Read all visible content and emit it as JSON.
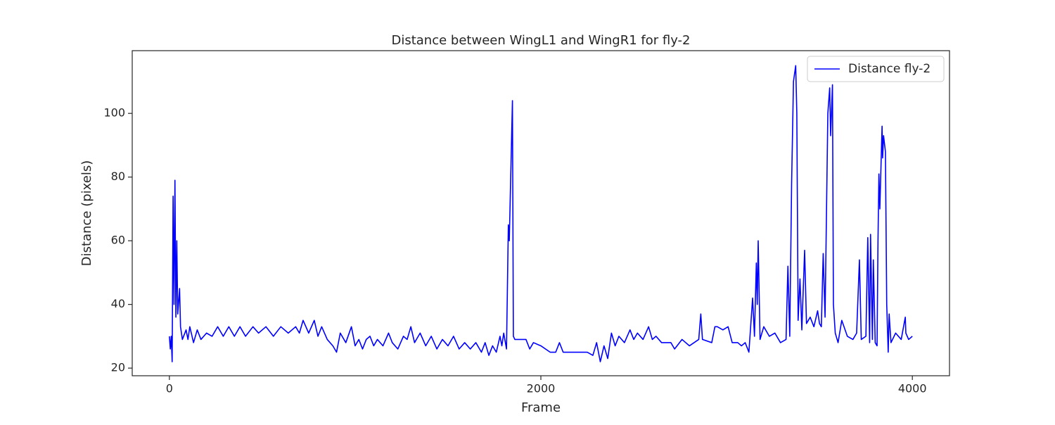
{
  "chart_data": {
    "type": "line",
    "title": "Distance between WingL1 and WingR1 for fly-2",
    "xlabel": "Frame",
    "ylabel": "Distance (pixels)",
    "xlim": [
      -200,
      4200
    ],
    "ylim": [
      17.6,
      119.7
    ],
    "xticks": [
      0,
      2000,
      4000
    ],
    "yticks": [
      20,
      40,
      60,
      80,
      100
    ],
    "legend": "upper right",
    "series": [
      {
        "name": "Distance fly-2",
        "color": "#0000ff",
        "x": [
          0,
          5,
          10,
          15,
          20,
          25,
          30,
          35,
          40,
          45,
          55,
          60,
          70,
          90,
          100,
          110,
          130,
          150,
          170,
          200,
          230,
          260,
          290,
          320,
          350,
          380,
          410,
          450,
          480,
          520,
          560,
          600,
          640,
          680,
          700,
          720,
          750,
          780,
          800,
          820,
          850,
          880,
          900,
          920,
          950,
          980,
          1000,
          1020,
          1040,
          1060,
          1080,
          1100,
          1120,
          1150,
          1180,
          1200,
          1230,
          1260,
          1280,
          1300,
          1320,
          1350,
          1380,
          1410,
          1440,
          1470,
          1500,
          1530,
          1560,
          1590,
          1620,
          1650,
          1680,
          1700,
          1720,
          1740,
          1760,
          1780,
          1790,
          1800,
          1815,
          1825,
          1830,
          1847,
          1852,
          1860,
          1900,
          1920,
          1940,
          1960,
          2000,
          2050,
          2080,
          2100,
          2120,
          2200,
          2250,
          2280,
          2300,
          2320,
          2340,
          2360,
          2380,
          2400,
          2420,
          2450,
          2480,
          2500,
          2520,
          2550,
          2580,
          2600,
          2620,
          2650,
          2700,
          2720,
          2760,
          2800,
          2850,
          2861,
          2870,
          2920,
          2937,
          2950,
          2980,
          3008,
          3030,
          3060,
          3080,
          3100,
          3120,
          3140,
          3150,
          3160,
          3165,
          3170,
          3180,
          3200,
          3230,
          3260,
          3290,
          3320,
          3330,
          3340,
          3350,
          3360,
          3372,
          3378,
          3385,
          3395,
          3405,
          3420,
          3430,
          3450,
          3470,
          3490,
          3500,
          3510,
          3520,
          3530,
          3545,
          3555,
          3560,
          3570,
          3575,
          3585,
          3600,
          3620,
          3650,
          3680,
          3700,
          3715,
          3725,
          3750,
          3760,
          3770,
          3775,
          3785,
          3790,
          3800,
          3810,
          3815,
          3820,
          3825,
          3837,
          3840,
          3845,
          3855,
          3862,
          3870,
          3875,
          3885,
          3910,
          3940,
          3962,
          3965,
          3980,
          4000
        ],
        "values": [
          30,
          26,
          30,
          22,
          74,
          40,
          79,
          36,
          60,
          37,
          45,
          33,
          29,
          32,
          29,
          33,
          28,
          32,
          29,
          31,
          30,
          33,
          30,
          33,
          30,
          33,
          30,
          33,
          31,
          33,
          30,
          33,
          31,
          33,
          31,
          35,
          31,
          35,
          30,
          33,
          29,
          27,
          25,
          31,
          28,
          33,
          27,
          29,
          26,
          29,
          30,
          27,
          29,
          27,
          31,
          28,
          26,
          30,
          29,
          33,
          28,
          31,
          27,
          30,
          26,
          29,
          27,
          30,
          26,
          28,
          26,
          28,
          25,
          28,
          24,
          27,
          25,
          30,
          27,
          31,
          26,
          65,
          60,
          104,
          30,
          29,
          29,
          29,
          26,
          28,
          27,
          25,
          25,
          28,
          25,
          25,
          25,
          24,
          28,
          22,
          27,
          23,
          31,
          27,
          30,
          28,
          32,
          29,
          31,
          29,
          33,
          29,
          30,
          28,
          28,
          26,
          29,
          27,
          29,
          37,
          29,
          28,
          33,
          33,
          32,
          33,
          28,
          28,
          27,
          28,
          25,
          42,
          30,
          53,
          40,
          60,
          29,
          33,
          30,
          31,
          28,
          29,
          52,
          30,
          78,
          110,
          115,
          100,
          35,
          48,
          32,
          57,
          34,
          36,
          33,
          38,
          34,
          33,
          56,
          36,
          100,
          108,
          93,
          109,
          40,
          31,
          28,
          35,
          30,
          29,
          31,
          54,
          29,
          30,
          61,
          28,
          62,
          29,
          54,
          28,
          27,
          60,
          81,
          70,
          96,
          86,
          93,
          88,
          40,
          25,
          37,
          28,
          31,
          29,
          36,
          31,
          29,
          30
        ]
      }
    ]
  }
}
